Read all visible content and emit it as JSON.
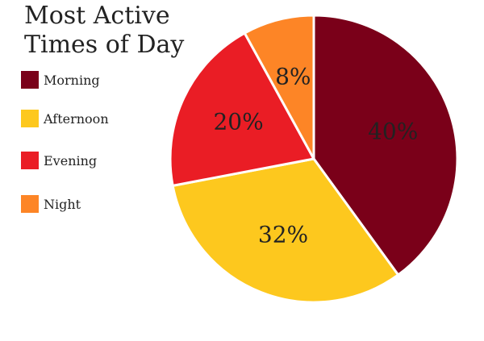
{
  "chart_data": {
    "type": "pie",
    "title": "Most Active Times of Day",
    "categories": [
      "Morning",
      "Afternoon",
      "Evening",
      "Night"
    ],
    "values": [
      40,
      32,
      20,
      8
    ],
    "data_labels": [
      "40%",
      "32%",
      "20%",
      "8%"
    ],
    "colors": [
      "#7a0019",
      "#fdc81e",
      "#ea1d25",
      "#fd8526"
    ],
    "legend_position": "left",
    "start_angle_deg": 0,
    "direction": "clockwise"
  }
}
